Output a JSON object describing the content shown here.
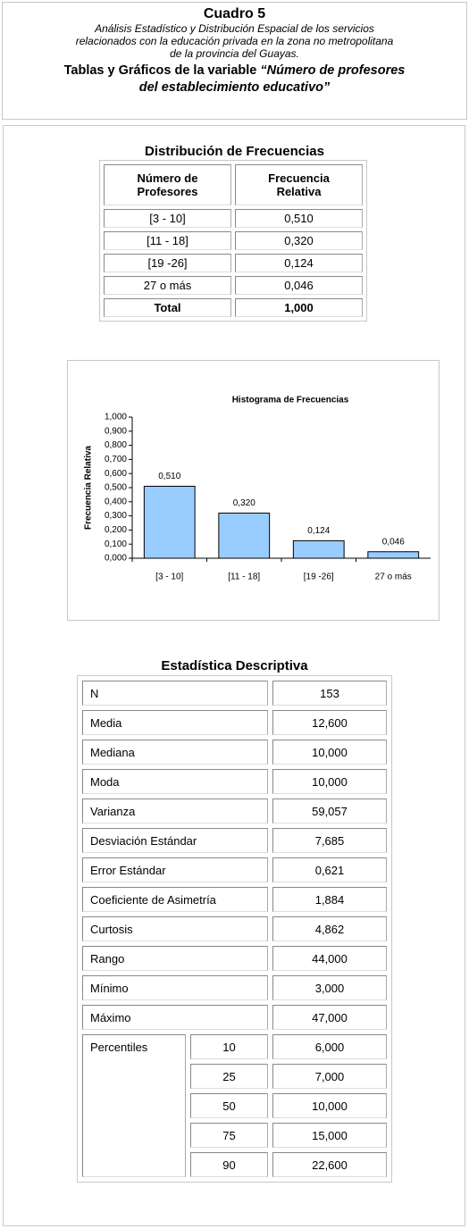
{
  "header": {
    "title": "Cuadro 5",
    "subtitle_lines": [
      "Análisis Estadístico y Distribución Espacial de los servicios",
      "relacionados con la educación privada en la zona no metropolitana",
      "de la provincia del Guayas."
    ],
    "heading": "Tablas y Gráficos de la variable ",
    "heading_quote": "“Número de profesores del establecimiento educativo”"
  },
  "freq_table": {
    "title": "Distribución de Frecuencias",
    "columns": [
      "Número de Profesores",
      "Frecuencia Relativa"
    ],
    "rows": [
      [
        "[3 - 10]",
        "0,510"
      ],
      [
        "[11 - 18]",
        "0,320"
      ],
      [
        "[19 -26]",
        "0,124"
      ],
      [
        "27 o más",
        "0,046"
      ]
    ],
    "total": [
      "Total",
      "1,000"
    ]
  },
  "chart_data": {
    "type": "bar",
    "title": "Histograma de Frecuencias",
    "y_label": "Frecuencia Relativa",
    "categories": [
      "[3 - 10]",
      "[11 - 18]",
      "[19 -26]",
      "27 o más"
    ],
    "values": [
      0.51,
      0.32,
      0.124,
      0.046
    ],
    "value_labels": [
      "0,510",
      "0,320",
      "0,124",
      "0,046"
    ],
    "color": "#99ccff",
    "ylim": [
      0,
      1
    ],
    "yticks": [
      {
        "value": 0,
        "label": "0,000"
      },
      {
        "value": 0.1,
        "label": "0,100"
      },
      {
        "value": 0.2,
        "label": "0,200"
      },
      {
        "value": 0.3,
        "label": "0,300"
      },
      {
        "value": 0.4,
        "label": "0,400"
      },
      {
        "value": 0.5,
        "label": "0,500"
      },
      {
        "value": 0.6,
        "label": "0,600"
      },
      {
        "value": 0.7,
        "label": "0,700"
      },
      {
        "value": 0.8,
        "label": "0,800"
      },
      {
        "value": 0.9,
        "label": "0,900"
      },
      {
        "value": 1,
        "label": "1,000"
      }
    ]
  },
  "stats_table": {
    "title": "Estadística Descriptiva",
    "rows": [
      [
        "N",
        "153"
      ],
      [
        "Media",
        "12,600"
      ],
      [
        "Mediana",
        "10,000"
      ],
      [
        "Moda",
        "10,000"
      ],
      [
        "Varianza",
        "59,057"
      ],
      [
        "Desviación Estándar",
        "7,685"
      ],
      [
        "Error Estándar",
        "0,621"
      ],
      [
        "Coeficiente de Asimetría",
        "1,884"
      ],
      [
        "Curtosis",
        "4,862"
      ],
      [
        "Rango",
        "44,000"
      ],
      [
        "Mínimo",
        "3,000"
      ],
      [
        "Máximo",
        "47,000"
      ]
    ],
    "percentiles": {
      "label": "Percentiles",
      "rows": [
        [
          "10",
          "6,000"
        ],
        [
          "25",
          "7,000"
        ],
        [
          "50",
          "10,000"
        ],
        [
          "75",
          "15,000"
        ],
        [
          "90",
          "22,600"
        ]
      ]
    }
  }
}
